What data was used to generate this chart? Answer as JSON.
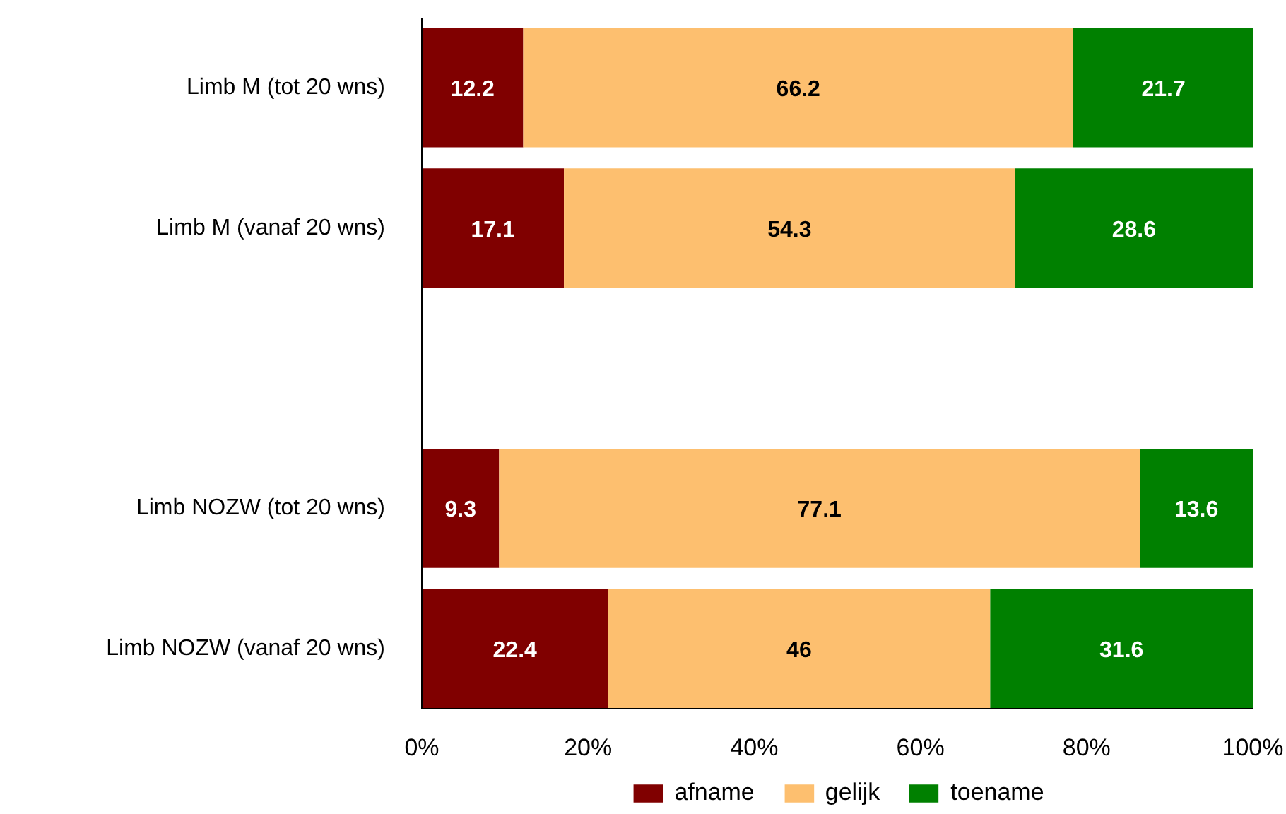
{
  "chart_data": {
    "type": "bar",
    "orientation": "horizontal",
    "stacked": true,
    "categories": [
      "Limb M (tot 20 wns)",
      "Limb M (vanaf 20 wns)",
      null,
      "Limb NOZW (tot 20 wns)",
      "Limb NOZW (vanaf 20 wns)"
    ],
    "series": [
      {
        "name": "afname",
        "color": "#800000",
        "values": [
          12.2,
          17.1,
          null,
          9.3,
          22.4
        ]
      },
      {
        "name": "gelijk",
        "color": "#fdbf6f",
        "values": [
          66.2,
          54.3,
          null,
          77.1,
          46
        ]
      },
      {
        "name": "toename",
        "color": "#008000",
        "values": [
          21.7,
          28.6,
          null,
          13.6,
          31.6
        ]
      }
    ],
    "xlim": [
      0,
      100
    ],
    "xticks": [
      {
        "value": 0,
        "label": "0%"
      },
      {
        "value": 20,
        "label": "20%"
      },
      {
        "value": 40,
        "label": "40%"
      },
      {
        "value": 60,
        "label": "60%"
      },
      {
        "value": 80,
        "label": "80%"
      },
      {
        "value": 100,
        "label": "100%"
      }
    ],
    "data_labels": true,
    "legend": "bottom",
    "grid": false
  }
}
